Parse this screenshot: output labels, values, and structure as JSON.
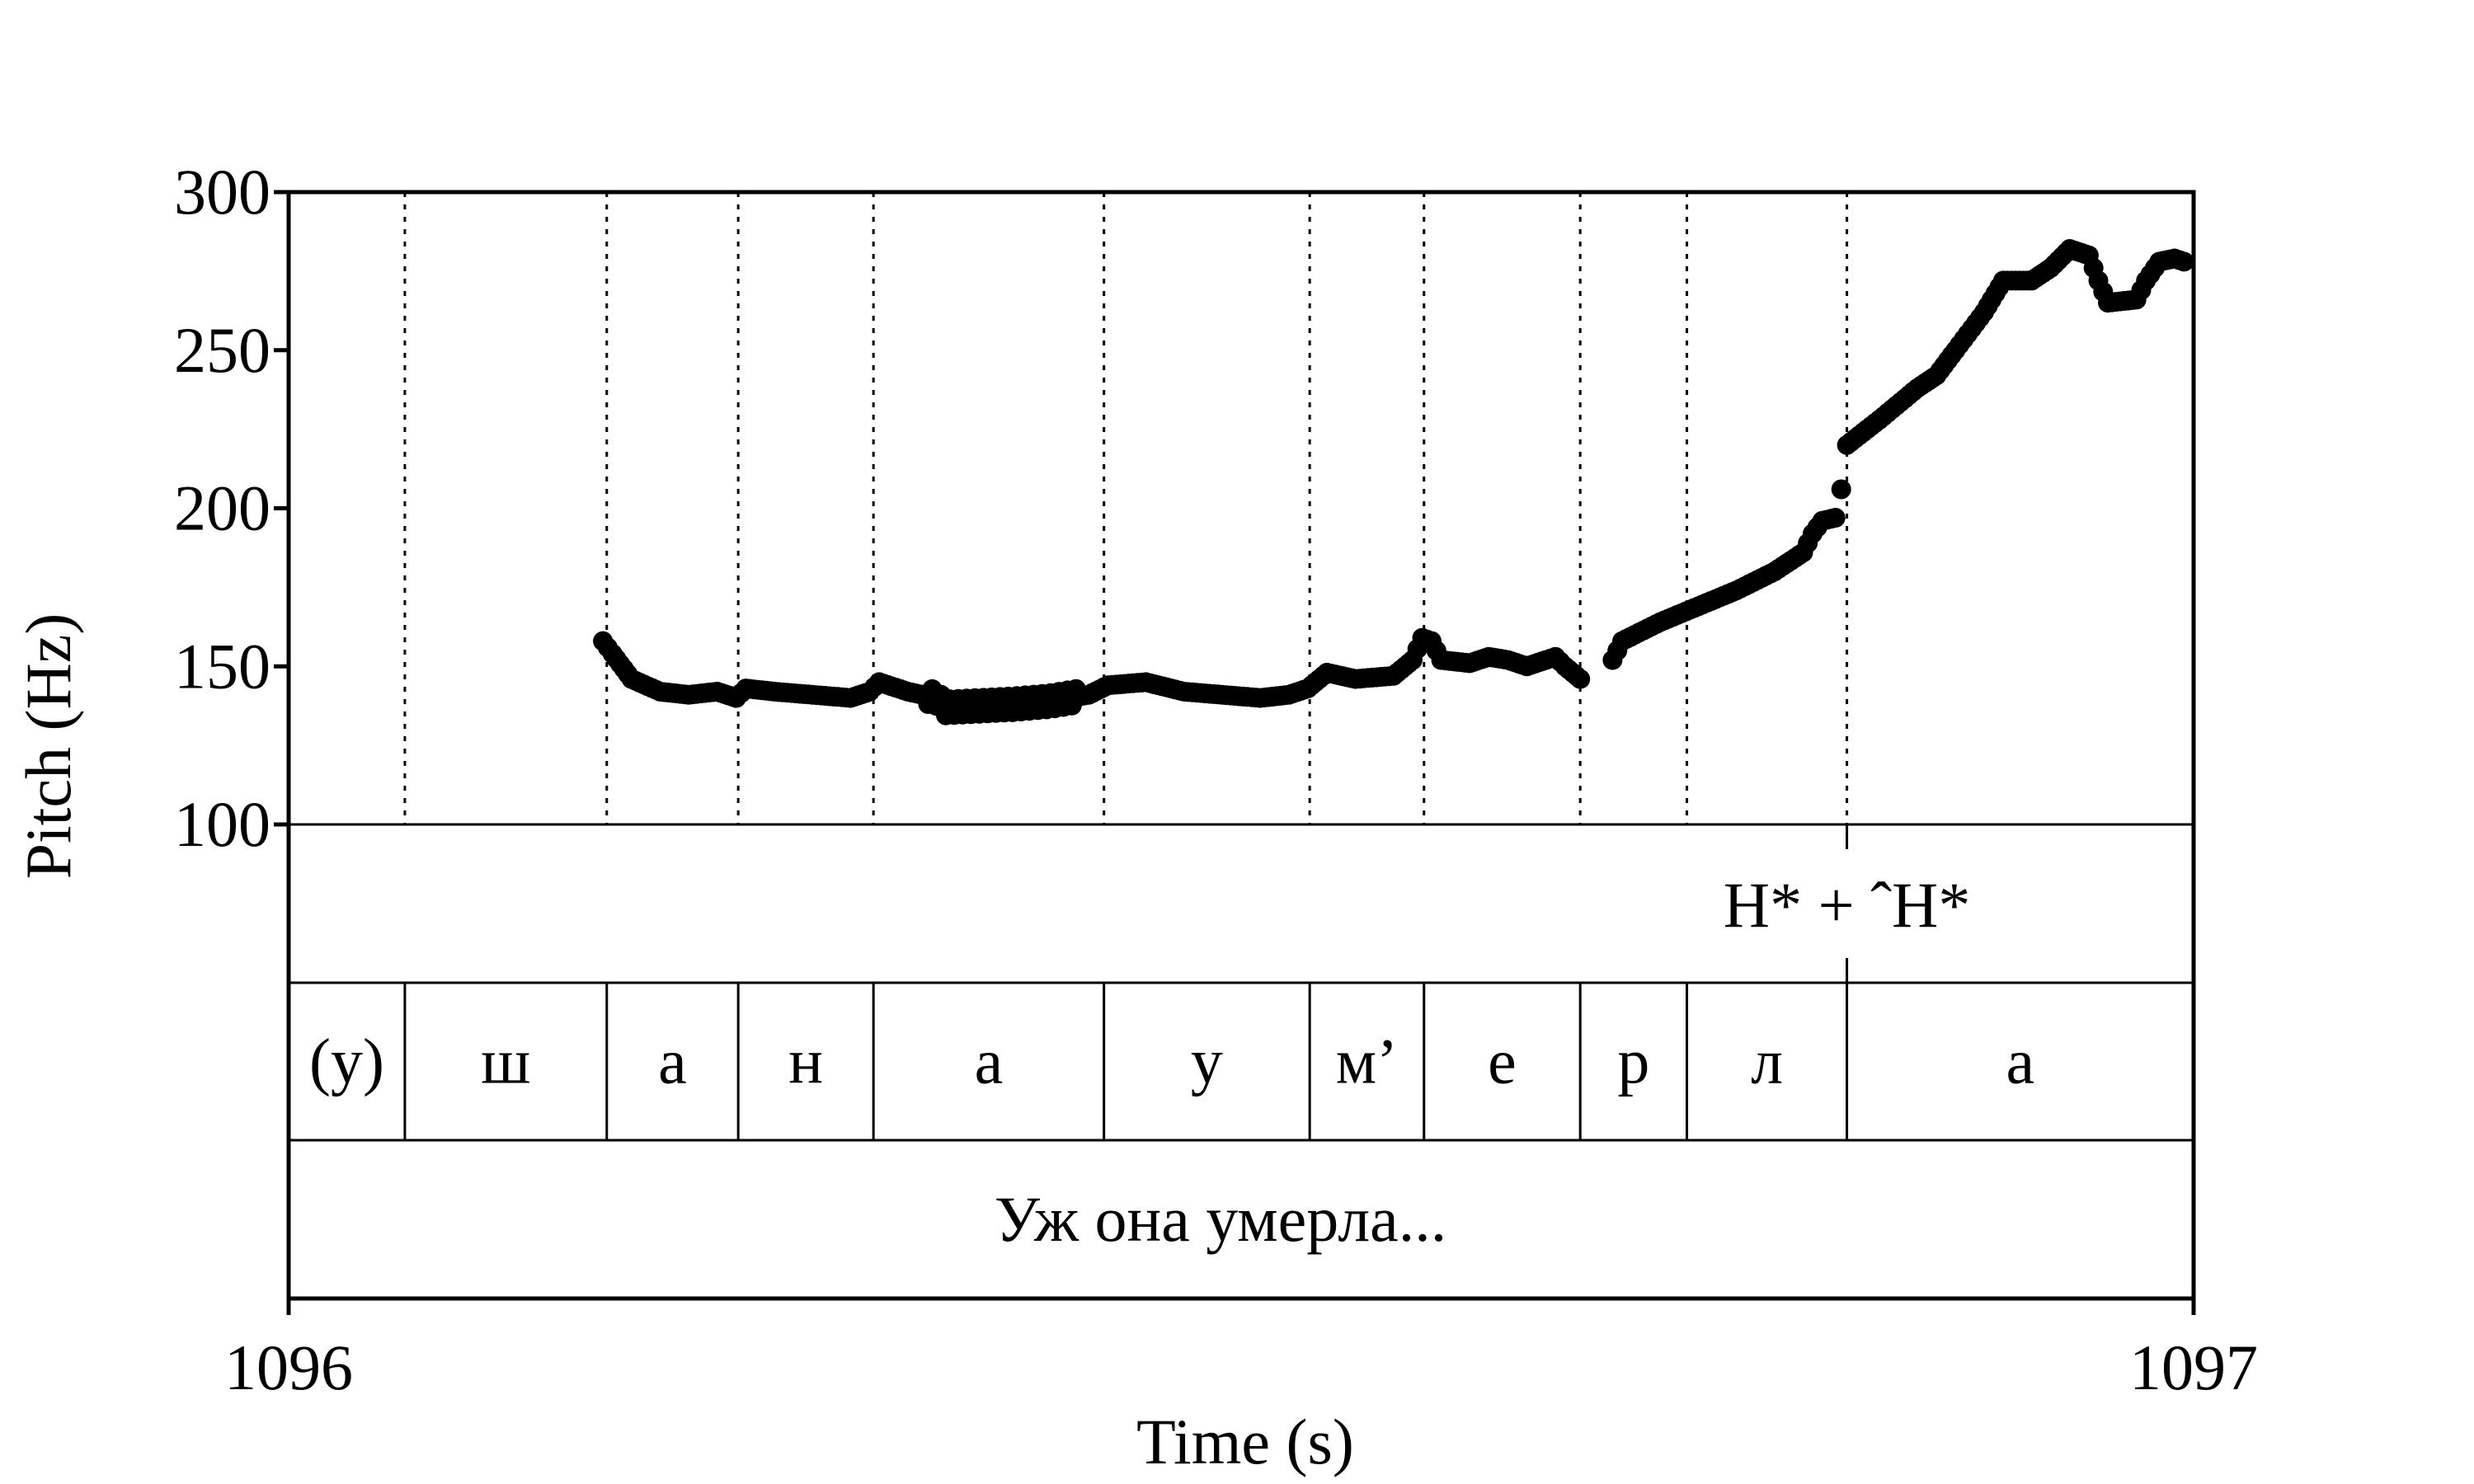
{
  "chart_data": {
    "type": "scatter",
    "xlabel": "Time (s)",
    "ylabel": "Pitch (Hz)",
    "xlim": [
      1096,
      1097
    ],
    "ylim": [
      100,
      300
    ],
    "x_ticks": [
      "1096",
      "1097"
    ],
    "y_ticks": [
      "100",
      "150",
      "200",
      "250",
      "300"
    ],
    "grid": false,
    "boundaries": [
      1096.061,
      1096.167,
      1096.236,
      1096.307,
      1096.428,
      1096.536,
      1096.596,
      1096.678,
      1096.734,
      1096.818
    ],
    "segments": [
      {
        "label": "(у)",
        "start": 1096.0,
        "end": 1096.061
      },
      {
        "label": "ш",
        "start": 1096.061,
        "end": 1096.167
      },
      {
        "label": "а",
        "start": 1096.167,
        "end": 1096.236
      },
      {
        "label": "н",
        "start": 1096.236,
        "end": 1096.307
      },
      {
        "label": "а",
        "start": 1096.307,
        "end": 1096.428
      },
      {
        "label": "у",
        "start": 1096.428,
        "end": 1096.536
      },
      {
        "label": "м’",
        "start": 1096.536,
        "end": 1096.596
      },
      {
        "label": "е",
        "start": 1096.596,
        "end": 1096.678
      },
      {
        "label": "р",
        "start": 1096.678,
        "end": 1096.734
      },
      {
        "label": "л",
        "start": 1096.734,
        "end": 1096.818
      },
      {
        "label": "а",
        "start": 1096.818,
        "end": 1097.0
      }
    ],
    "tone": {
      "label": "H* + ˆH*",
      "at": 1096.818
    },
    "sentence": "Уж она умерла...",
    "pitch_anchors": [
      [
        1096.165,
        158
      ],
      [
        1096.17,
        154
      ],
      [
        1096.18,
        146
      ],
      [
        1096.195,
        142
      ],
      [
        1096.21,
        141
      ],
      [
        1096.225,
        142
      ],
      [
        1096.235,
        140
      ],
      [
        1096.24,
        143
      ],
      [
        1096.255,
        142
      ],
      [
        1096.275,
        141
      ],
      [
        1096.295,
        140
      ],
      [
        1096.305,
        142
      ],
      [
        1096.31,
        145
      ],
      [
        1096.325,
        142
      ],
      [
        1096.34,
        140
      ],
      [
        1096.345,
        137
      ],
      [
        1096.38,
        138
      ],
      [
        1096.4,
        139
      ],
      [
        1096.42,
        141
      ],
      [
        1096.43,
        144
      ],
      [
        1096.45,
        145
      ],
      [
        1096.47,
        142
      ],
      [
        1096.49,
        141
      ],
      [
        1096.51,
        140
      ],
      [
        1096.525,
        141
      ],
      [
        1096.535,
        143
      ],
      [
        1096.545,
        148
      ],
      [
        1096.56,
        146
      ],
      [
        1096.58,
        147
      ],
      [
        1096.59,
        152
      ],
      [
        1096.595,
        159
      ],
      [
        1096.6,
        158
      ],
      [
        1096.605,
        152
      ],
      [
        1096.62,
        151
      ],
      [
        1096.63,
        153
      ],
      [
        1096.64,
        152
      ],
      [
        1096.65,
        150
      ],
      [
        1096.66,
        152
      ],
      [
        1096.665,
        153
      ],
      [
        1096.67,
        150
      ],
      [
        1096.678,
        146
      ],
      [
        1096.695,
        152
      ],
      [
        1096.7,
        158
      ],
      [
        1096.72,
        164
      ],
      [
        1096.74,
        169
      ],
      [
        1096.76,
        174
      ],
      [
        1096.78,
        180
      ],
      [
        1096.795,
        186
      ],
      [
        1096.8,
        192
      ],
      [
        1096.805,
        196
      ],
      [
        1096.812,
        197
      ],
      [
        1096.815,
        206
      ],
      [
        1096.818,
        220
      ],
      [
        1096.835,
        228
      ],
      [
        1096.855,
        238
      ],
      [
        1096.865,
        242
      ],
      [
        1096.875,
        250
      ],
      [
        1096.89,
        262
      ],
      [
        1096.9,
        272
      ],
      [
        1096.915,
        272
      ],
      [
        1096.925,
        276
      ],
      [
        1096.935,
        282
      ],
      [
        1096.945,
        280
      ],
      [
        1096.95,
        272
      ],
      [
        1096.955,
        265
      ],
      [
        1096.97,
        266
      ],
      [
        1096.975,
        272
      ],
      [
        1096.982,
        278
      ],
      [
        1096.99,
        279
      ],
      [
        1096.995,
        278
      ]
    ]
  }
}
